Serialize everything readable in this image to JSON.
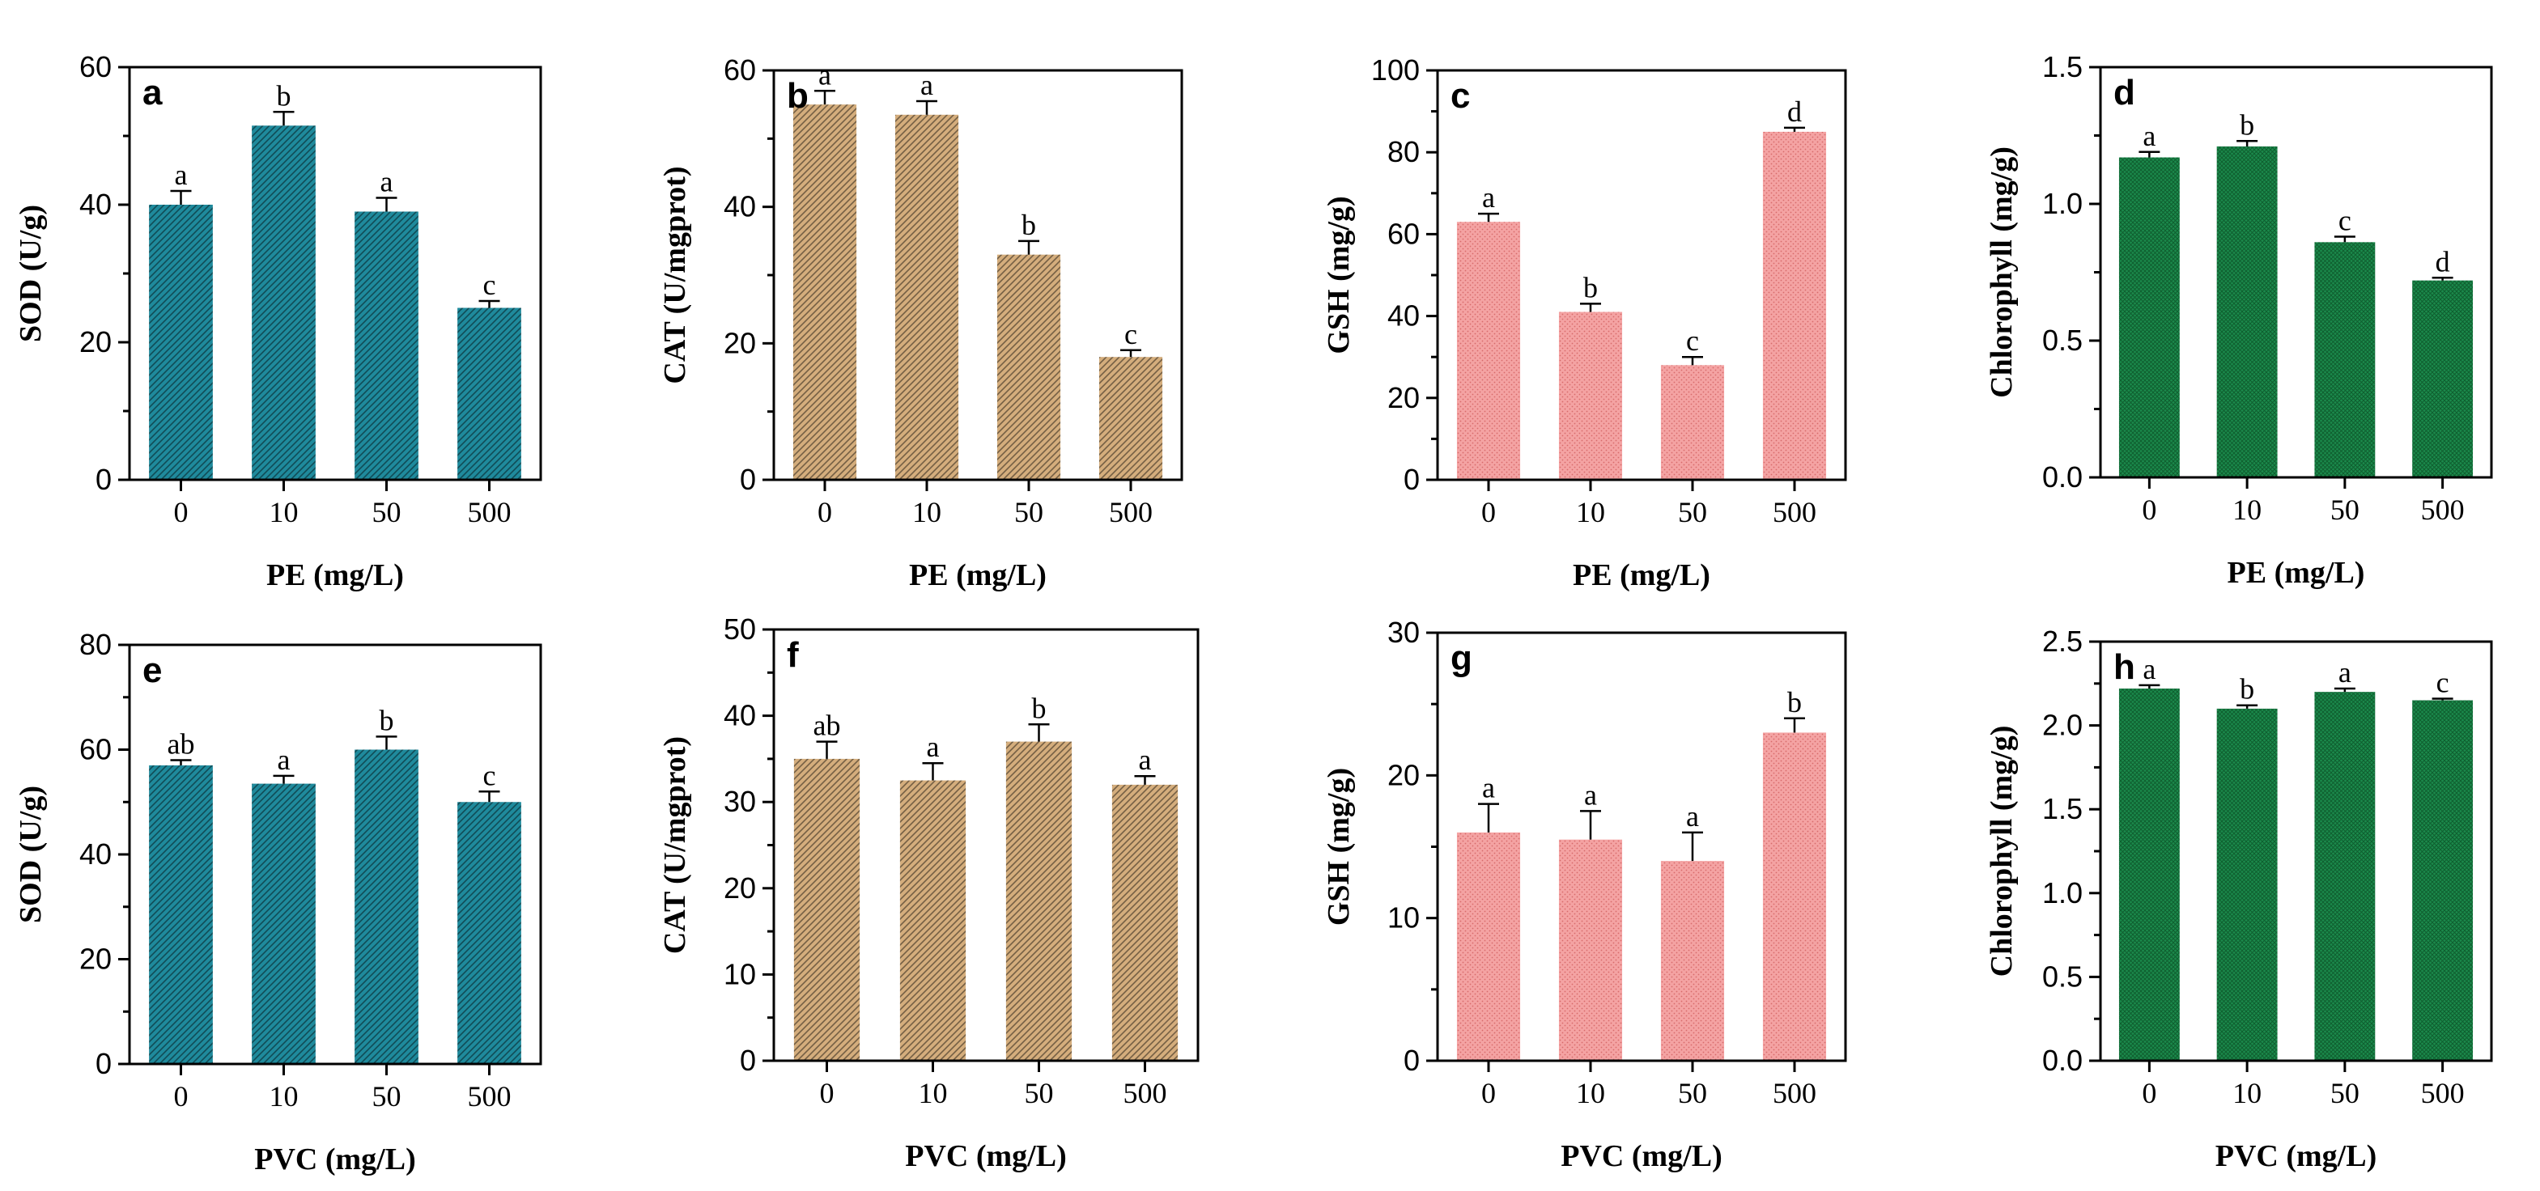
{
  "chart_data": [
    {
      "panel": "a",
      "type": "bar",
      "categories": [
        "0",
        "10",
        "50",
        "500"
      ],
      "values": [
        40,
        51.5,
        39,
        25
      ],
      "errors": [
        2,
        2,
        2,
        1
      ],
      "significance": [
        "a",
        "b",
        "a",
        "c"
      ],
      "xlabel": "PE (mg/L)",
      "ylabel": "SOD (U/g)",
      "ylim": [
        0,
        60
      ],
      "yticks": [
        "0",
        "20",
        "40",
        "60"
      ],
      "minor": 1,
      "color": "#1f8a9c",
      "pattern": "hatch"
    },
    {
      "panel": "b",
      "type": "bar",
      "categories": [
        "0",
        "10",
        "50",
        "500"
      ],
      "values": [
        55,
        53.5,
        33,
        18
      ],
      "errors": [
        2,
        2,
        2,
        1
      ],
      "significance": [
        "a",
        "a",
        "b",
        "c"
      ],
      "xlabel": "PE (mg/L)",
      "ylabel": "CAT (U/mgprot)",
      "ylim": [
        0,
        60
      ],
      "yticks": [
        "0",
        "20",
        "40",
        "60"
      ],
      "minor": 1,
      "color": "#d4ad7c",
      "pattern": "hatch"
    },
    {
      "panel": "c",
      "type": "bar",
      "categories": [
        "0",
        "10",
        "50",
        "500"
      ],
      "values": [
        63,
        41,
        28,
        85
      ],
      "errors": [
        2,
        2,
        2,
        1
      ],
      "significance": [
        "a",
        "b",
        "c",
        "d"
      ],
      "xlabel": "PE (mg/L)",
      "ylabel": "GSH (mg/g)",
      "ylim": [
        0,
        100
      ],
      "yticks": [
        "0",
        "20",
        "40",
        "60",
        "80",
        "100"
      ],
      "minor": 1,
      "color": "#f4a3a3",
      "pattern": "dots"
    },
    {
      "panel": "d",
      "type": "bar",
      "categories": [
        "0",
        "10",
        "50",
        "500"
      ],
      "values": [
        1.17,
        1.21,
        0.86,
        0.72
      ],
      "errors": [
        0.02,
        0.02,
        0.02,
        0.01
      ],
      "significance": [
        "a",
        "b",
        "c",
        "d"
      ],
      "xlabel": "PE (mg/L)",
      "ylabel": "Chlorophyll (mg/g)",
      "ylim": [
        0,
        1.5
      ],
      "yticks": [
        "0.0",
        "0.5",
        "1.0",
        "1.5"
      ],
      "minor": 1,
      "color": "#1b8a4c",
      "pattern": "grid"
    },
    {
      "panel": "e",
      "type": "bar",
      "categories": [
        "0",
        "10",
        "50",
        "500"
      ],
      "values": [
        57,
        53.5,
        60,
        50
      ],
      "errors": [
        1,
        1.5,
        2.5,
        2
      ],
      "significance": [
        "ab",
        "a",
        "b",
        "c"
      ],
      "xlabel": "PVC (mg/L)",
      "ylabel": "SOD (U/g)",
      "ylim": [
        0,
        80
      ],
      "yticks": [
        "0",
        "20",
        "40",
        "60",
        "80"
      ],
      "minor": 1,
      "color": "#1f8a9c",
      "pattern": "hatch"
    },
    {
      "panel": "f",
      "type": "bar",
      "categories": [
        "0",
        "10",
        "50",
        "500"
      ],
      "values": [
        35,
        32.5,
        37,
        32
      ],
      "errors": [
        2,
        2,
        2,
        1
      ],
      "significance": [
        "ab",
        "a",
        "b",
        "a"
      ],
      "xlabel": "PVC (mg/L)",
      "ylabel": "CAT (U/mgprot)",
      "ylim": [
        0,
        50
      ],
      "yticks": [
        "0",
        "10",
        "20",
        "30",
        "40",
        "50"
      ],
      "minor": 1,
      "color": "#d4ad7c",
      "pattern": "hatch"
    },
    {
      "panel": "g",
      "type": "bar",
      "categories": [
        "0",
        "10",
        "50",
        "500"
      ],
      "values": [
        16,
        15.5,
        14,
        23
      ],
      "errors": [
        2,
        2,
        2,
        1
      ],
      "significance": [
        "a",
        "a",
        "a",
        "b"
      ],
      "xlabel": "PVC (mg/L)",
      "ylabel": "GSH (mg/g)",
      "ylim": [
        0,
        30
      ],
      "yticks": [
        "0",
        "10",
        "20",
        "30"
      ],
      "minor": 1,
      "color": "#f4a3a3",
      "pattern": "dots"
    },
    {
      "panel": "h",
      "type": "bar",
      "categories": [
        "0",
        "10",
        "50",
        "500"
      ],
      "values": [
        2.22,
        2.1,
        2.2,
        2.15
      ],
      "errors": [
        0.02,
        0.02,
        0.02,
        0.01
      ],
      "significance": [
        "a",
        "b",
        "a",
        "c"
      ],
      "xlabel": "PVC (mg/L)",
      "ylabel": "Chlorophyll (mg/g)",
      "ylim": [
        0,
        2.5
      ],
      "yticks": [
        "0.0",
        "0.5",
        "1.0",
        "1.5",
        "2.0",
        "2.5"
      ],
      "minor": 1,
      "color": "#1b8a4c",
      "pattern": "grid"
    }
  ]
}
